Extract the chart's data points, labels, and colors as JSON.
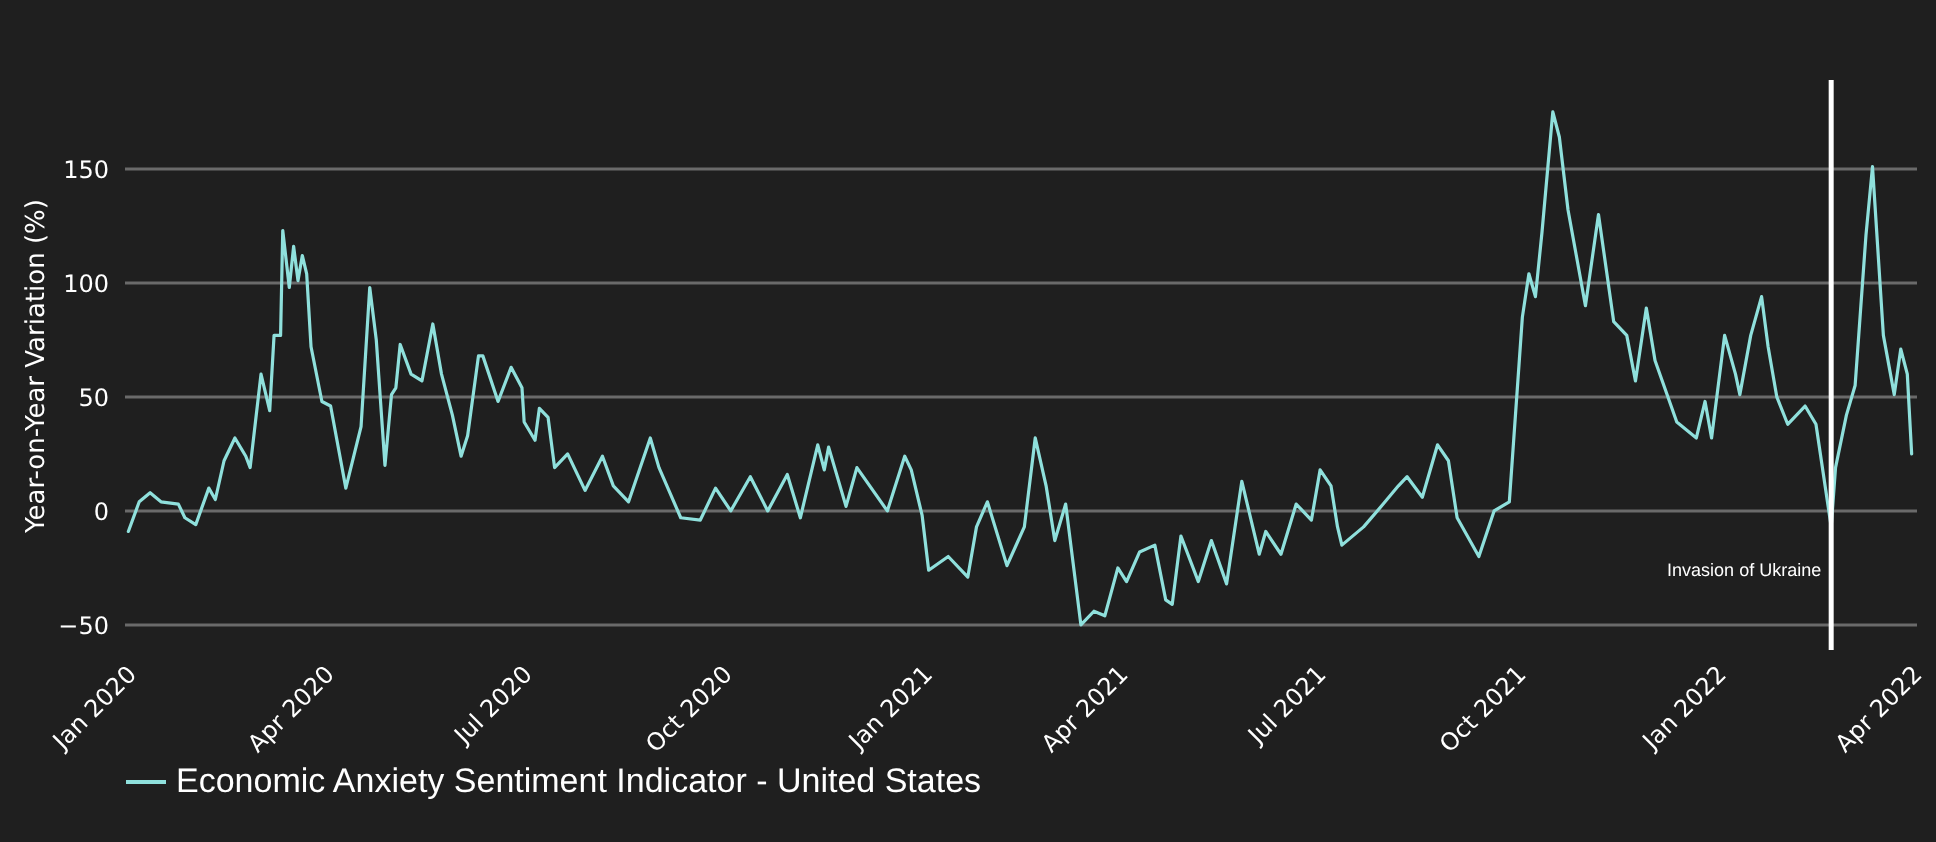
{
  "chart_data": {
    "type": "line",
    "ylabel": "Year-on-Year Variation (%)",
    "x": [
      "2020-01-03",
      "2020-01-08",
      "2020-01-13",
      "2020-01-18",
      "2020-01-26",
      "2020-01-29",
      "2020-02-03",
      "2020-02-09",
      "2020-02-12",
      "2020-02-16",
      "2020-02-21",
      "2020-02-26",
      "2020-02-28",
      "2020-03-04",
      "2020-03-08",
      "2020-03-10",
      "2020-03-13",
      "2020-03-14",
      "2020-03-17",
      "2020-03-19",
      "2020-03-21",
      "2020-03-23",
      "2020-03-25",
      "2020-03-27",
      "2020-04-01",
      "2020-04-05",
      "2020-04-12",
      "2020-04-19",
      "2020-04-23",
      "2020-04-26",
      "2020-04-30",
      "2020-05-03",
      "2020-05-05",
      "2020-05-07",
      "2020-05-12",
      "2020-05-17",
      "2020-05-22",
      "2020-05-26",
      "2020-05-31",
      "2020-06-04",
      "2020-06-07",
      "2020-06-12",
      "2020-06-14",
      "2020-06-21",
      "2020-06-27",
      "2020-07-02",
      "2020-07-03",
      "2020-07-08",
      "2020-07-10",
      "2020-07-14",
      "2020-07-17",
      "2020-07-23",
      "2020-07-26",
      "2020-07-31",
      "2020-08-08",
      "2020-08-13",
      "2020-08-20",
      "2020-08-30",
      "2020-09-03",
      "2020-09-13",
      "2020-09-22",
      "2020-09-29",
      "2020-10-06",
      "2020-10-15",
      "2020-10-23",
      "2020-11-01",
      "2020-11-07",
      "2020-11-15",
      "2020-11-18",
      "2020-11-20",
      "2020-11-28",
      "2020-12-03",
      "2020-12-17",
      "2020-12-25",
      "2020-12-28",
      "2021-01-02",
      "2021-01-05",
      "2021-01-14",
      "2021-01-23",
      "2021-01-27",
      "2021-02-01",
      "2021-02-10",
      "2021-02-18",
      "2021-02-23",
      "2021-02-28",
      "2021-03-04",
      "2021-03-09",
      "2021-03-16",
      "2021-03-22",
      "2021-03-27",
      "2021-04-02",
      "2021-04-06",
      "2021-04-12",
      "2021-04-19",
      "2021-04-24",
      "2021-04-27",
      "2021-05-01",
      "2021-05-09",
      "2021-05-15",
      "2021-05-22",
      "2021-05-29",
      "2021-06-06",
      "2021-06-09",
      "2021-06-16",
      "2021-06-23",
      "2021-06-30",
      "2021-07-04",
      "2021-07-09",
      "2021-07-12",
      "2021-07-14",
      "2021-07-24",
      "2021-08-02",
      "2021-08-09",
      "2021-08-13",
      "2021-08-20",
      "2021-08-27",
      "2021-09-01",
      "2021-09-05",
      "2021-09-15",
      "2021-09-22",
      "2021-09-29",
      "2021-10-05",
      "2021-10-08",
      "2021-10-11",
      "2021-10-14",
      "2021-10-19",
      "2021-10-22",
      "2021-10-26",
      "2021-11-03",
      "2021-11-09",
      "2021-11-16",
      "2021-11-22",
      "2021-11-26",
      "2021-12-01",
      "2021-12-05",
      "2021-12-15",
      "2021-12-24",
      "2021-12-28",
      "2021-12-31",
      "2022-01-06",
      "2022-01-11",
      "2022-01-13",
      "2022-01-18",
      "2022-01-23",
      "2022-01-26",
      "2022-01-30",
      "2022-02-04",
      "2022-02-12",
      "2022-02-17",
      "2022-02-24",
      "2022-02-26",
      "2022-03-03",
      "2022-03-07",
      "2022-03-12",
      "2022-03-15",
      "2022-03-20",
      "2022-03-25",
      "2022-03-28",
      "2022-03-31",
      "2022-04-02"
    ],
    "series": [
      {
        "name": "Economic Anxiety Sentiment Indicator - United States",
        "color": "#8fe0dc",
        "values": [
          -9,
          4,
          8,
          4,
          3,
          -3,
          -6,
          10,
          5,
          22,
          32,
          24,
          19,
          60,
          44,
          77,
          77,
          123,
          98,
          116,
          101,
          112,
          104,
          72,
          48,
          46,
          10,
          37,
          98,
          75,
          20,
          51,
          54,
          73,
          60,
          57,
          82,
          60,
          42,
          24,
          33,
          68,
          68,
          48,
          63,
          54,
          39,
          31,
          45,
          41,
          19,
          25,
          19,
          9,
          24,
          11,
          4,
          32,
          19,
          -3,
          -4,
          10,
          0,
          15,
          0,
          16,
          -3,
          29,
          18,
          28,
          2,
          19,
          0,
          24,
          18,
          -2,
          -26,
          -20,
          -29,
          -7,
          4,
          -24,
          -7,
          32,
          11,
          -13,
          3,
          -50,
          -44,
          -46,
          -25,
          -31,
          -18,
          -15,
          -39,
          -41,
          -11,
          -31,
          -13,
          -32,
          13,
          -19,
          -9,
          -19,
          3,
          -4,
          18,
          11,
          -7,
          -15,
          -7,
          3,
          11,
          15,
          6,
          29,
          22,
          -3,
          -20,
          0,
          4,
          85,
          104,
          94,
          122,
          175,
          164,
          132,
          90,
          130,
          83,
          77,
          57,
          89,
          66,
          39,
          32,
          48,
          32,
          77,
          60,
          51,
          77,
          94,
          72,
          50,
          38,
          46,
          38,
          -7,
          19,
          42,
          55,
          121,
          151,
          77,
          51,
          71,
          60,
          25
        ]
      }
    ],
    "xlim": [
      "2020-01-01",
      "2022-04-04"
    ],
    "xticks": [
      {
        "value": "2020-01-01",
        "label": "Jan 2020"
      },
      {
        "value": "2020-04-01",
        "label": "Apr 2020"
      },
      {
        "value": "2020-07-01",
        "label": "Jul 2020"
      },
      {
        "value": "2020-10-01",
        "label": "Oct 2020"
      },
      {
        "value": "2021-01-01",
        "label": "Jan 2021"
      },
      {
        "value": "2021-04-01",
        "label": "Apr 2021"
      },
      {
        "value": "2021-07-01",
        "label": "Jul 2021"
      },
      {
        "value": "2021-10-01",
        "label": "Oct 2021"
      },
      {
        "value": "2022-01-01",
        "label": "Jan 2022"
      },
      {
        "value": "2022-04-01",
        "label": "Apr 2022"
      }
    ],
    "ylim": [
      -61,
      189
    ],
    "yticks": [
      {
        "value": -50,
        "label": "−50"
      },
      0,
      50,
      100,
      150
    ],
    "ref_lines": [
      {
        "axis": "x",
        "value": "2022-02-24",
        "label": "Invasion of Ukraine",
        "color": "#ffffff"
      }
    ],
    "grid": "y",
    "legend": "bottom",
    "line_style": "solid",
    "marker": "none"
  }
}
